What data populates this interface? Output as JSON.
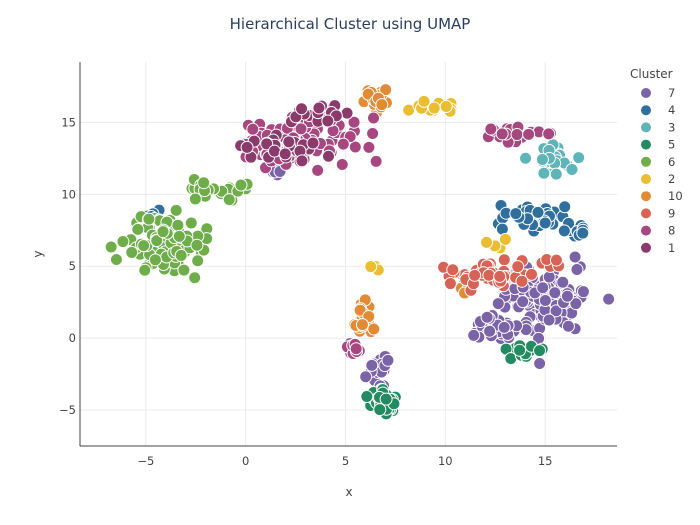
{
  "chart_data": {
    "type": "scatter",
    "title": "Hierarchical Cluster using UMAP",
    "xlabel": "x",
    "ylabel": "y",
    "xlim": [
      -8.3,
      18.6
    ],
    "ylim": [
      -7.5,
      19.2
    ],
    "xticks": [
      "−5",
      "0",
      "5",
      "10",
      "15"
    ],
    "xtick_values": [
      -5,
      0,
      5,
      10,
      15
    ],
    "yticks": [
      "−5",
      "0",
      "5",
      "10",
      "15"
    ],
    "ytick_values": [
      -5,
      0,
      5,
      10,
      15
    ],
    "grid": true,
    "legend": {
      "title": "Cluster",
      "placement": "top-right"
    },
    "series": [
      {
        "name": "7",
        "color": "#7b63a8",
        "groups": [
          {
            "center": [
              15.0,
              2.7
            ],
            "spread": [
              1.6,
              1.7
            ],
            "n": 150
          },
          {
            "center": [
              12.3,
              0.6
            ],
            "spread": [
              0.9,
              0.8
            ],
            "n": 40
          },
          {
            "center": [
              6.7,
              -2.4
            ],
            "spread": [
              0.4,
              1.0
            ],
            "n": 22
          },
          {
            "center": [
              1.4,
              11.6
            ],
            "spread": [
              0.5,
              0.3
            ],
            "n": 8
          }
        ]
      },
      {
        "name": "4",
        "color": "#2f6f9e",
        "groups": [
          {
            "center": [
              14.3,
              8.4
            ],
            "spread": [
              1.6,
              0.7
            ],
            "n": 45
          },
          {
            "center": [
              16.5,
              7.6
            ],
            "spread": [
              0.5,
              0.5
            ],
            "n": 12
          },
          {
            "center": [
              -4.6,
              8.6
            ],
            "spread": [
              0.4,
              0.2
            ],
            "n": 4
          }
        ]
      },
      {
        "name": "3",
        "color": "#5fb4b8",
        "groups": [
          {
            "center": [
              15.3,
              12.4
            ],
            "spread": [
              0.8,
              0.8
            ],
            "n": 28
          }
        ]
      },
      {
        "name": "5",
        "color": "#238b62",
        "groups": [
          {
            "center": [
              6.9,
              -4.4
            ],
            "spread": [
              0.55,
              0.6
            ],
            "n": 60
          },
          {
            "center": [
              13.8,
              -0.9
            ],
            "spread": [
              0.9,
              0.4
            ],
            "n": 14
          }
        ]
      },
      {
        "name": "6",
        "color": "#6fad4a",
        "groups": [
          {
            "center": [
              -4.0,
              6.5
            ],
            "spread": [
              1.4,
              1.6
            ],
            "n": 110
          },
          {
            "center": [
              -1.5,
              10.3
            ],
            "spread": [
              1.2,
              0.6
            ],
            "n": 25
          }
        ]
      },
      {
        "name": "2",
        "color": "#eabd32",
        "groups": [
          {
            "center": [
              9.5,
              16.1
            ],
            "spread": [
              1.2,
              0.3
            ],
            "n": 14
          },
          {
            "center": [
              6.3,
              5.0
            ],
            "spread": [
              0.3,
              0.4
            ],
            "n": 4
          },
          {
            "center": [
              12.4,
              6.5
            ],
            "spread": [
              0.4,
              0.3
            ],
            "n": 4
          }
        ]
      },
      {
        "name": "10",
        "color": "#e18b34",
        "groups": [
          {
            "center": [
              5.8,
              1.4
            ],
            "spread": [
              0.45,
              1.2
            ],
            "n": 28
          },
          {
            "center": [
              6.5,
              16.6
            ],
            "spread": [
              0.6,
              0.6
            ],
            "n": 16
          },
          {
            "center": [
              10.8,
              3.6
            ],
            "spread": [
              0.3,
              0.6
            ],
            "n": 6
          }
        ]
      },
      {
        "name": "9",
        "color": "#d66356",
        "groups": [
          {
            "center": [
              12.5,
              4.4
            ],
            "spread": [
              1.5,
              0.9
            ],
            "n": 45
          },
          {
            "center": [
              15.3,
              5.3
            ],
            "spread": [
              0.5,
              0.4
            ],
            "n": 6
          }
        ]
      },
      {
        "name": "8",
        "color": "#a7477f",
        "groups": [
          {
            "center": [
              2.6,
              13.8
            ],
            "spread": [
              2.6,
              1.3
            ],
            "n": 100
          },
          {
            "center": [
              5.4,
              -0.8
            ],
            "spread": [
              0.4,
              0.7
            ],
            "n": 14
          },
          {
            "center": [
              13.5,
              14.2
            ],
            "spread": [
              1.3,
              0.5
            ],
            "n": 18
          }
        ]
      },
      {
        "name": "1",
        "color": "#8b3a6c",
        "groups": [
          {
            "center": [
              3.8,
              15.6
            ],
            "spread": [
              1.1,
              0.5
            ],
            "n": 25
          },
          {
            "center": [
              1.8,
              13.0
            ],
            "spread": [
              1.4,
              1.0
            ],
            "n": 30
          }
        ]
      }
    ]
  }
}
